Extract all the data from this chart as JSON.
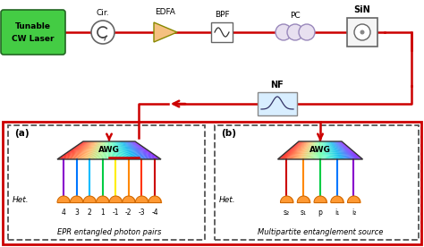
{
  "fig_width": 4.74,
  "fig_height": 2.76,
  "dpi": 100,
  "bg_color": "#ffffff",
  "line_color": "#cc0000",
  "laser_box_color": "#44cc44",
  "laser_text_1": "Tunable",
  "laser_text_2": "CW Laser",
  "labels": [
    "Cir.",
    "EDFA",
    "BPF",
    "PC",
    "SiN",
    "NF"
  ],
  "panel_a_label": "(a)",
  "panel_b_label": "(b)",
  "panel_a_caption": "EPR entangled photon pairs",
  "panel_b_caption": "Multipartite entanglement source",
  "awg_label": "AWG",
  "het_label": "Het.",
  "panel_a_channels": [
    "4",
    "3",
    "2",
    "1",
    "-1",
    "-2",
    "-3",
    "-4"
  ],
  "panel_b_channels": [
    "s₂",
    "s₁",
    "p",
    "i₁",
    "i₂"
  ],
  "panel_a_colors": [
    "#8800cc",
    "#0077ff",
    "#00bbff",
    "#00cc44",
    "#ffee00",
    "#ff8800",
    "#ff3300",
    "#cc0000"
  ],
  "panel_b_colors": [
    "#cc0000",
    "#ff8800",
    "#00cc44",
    "#0077ff",
    "#8800cc"
  ]
}
